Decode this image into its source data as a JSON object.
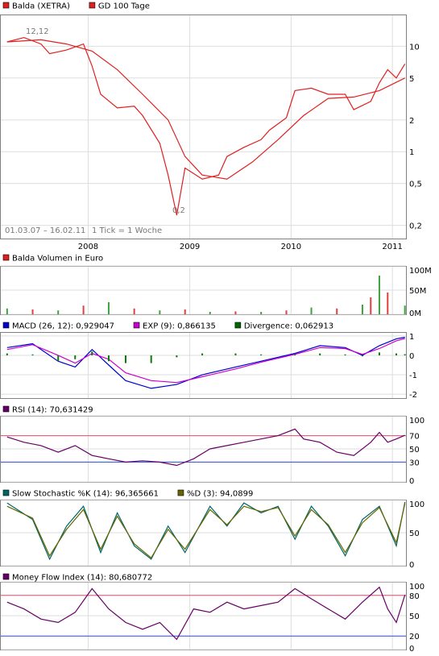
{
  "chart_data": [
    {
      "type": "line",
      "panel": "price",
      "legend": [
        {
          "label": "Balda (XETRA)",
          "color": "#e02020"
        },
        {
          "label": "GD 100 Tage",
          "color": "#e02020"
        }
      ],
      "y_scale": "log",
      "ylim": [
        0.15,
        20
      ],
      "y_ticks": [
        "10",
        "5",
        "2",
        "1",
        "0,5",
        "0,2"
      ],
      "y_tick_values": [
        10,
        5,
        2,
        1,
        0.5,
        0.2
      ],
      "x_ticks": [
        "2008",
        "2009",
        "2010",
        "2011"
      ],
      "x_range": [
        "2007-03-01",
        "2011-02-16"
      ],
      "annotations": [
        "12,12",
        "0,2"
      ],
      "date_range_label": "01.03.07 – 16.02.11",
      "tick_label": "1 Tick = 1 Woche",
      "series": [
        {
          "name": "Balda (XETRA)",
          "x": [
            "2007-03",
            "2007-05",
            "2007-07",
            "2007-08",
            "2007-10",
            "2007-12",
            "2008-01",
            "2008-02",
            "2008-04",
            "2008-06",
            "2008-07",
            "2008-09",
            "2008-10",
            "2008-11",
            "2008-12",
            "2009-02",
            "2009-04",
            "2009-05",
            "2009-07",
            "2009-09",
            "2009-10",
            "2009-12",
            "2010-01",
            "2010-03",
            "2010-05",
            "2010-07",
            "2010-08",
            "2010-10",
            "2010-11",
            "2010-12",
            "2011-01",
            "2011-02"
          ],
          "y": [
            11,
            12.1,
            10.5,
            8.5,
            9.2,
            10.5,
            6.5,
            3.5,
            2.6,
            2.7,
            2.2,
            1.2,
            0.6,
            0.25,
            0.7,
            0.55,
            0.6,
            0.9,
            1.1,
            1.3,
            1.6,
            2.1,
            3.8,
            4.0,
            3.5,
            3.5,
            2.5,
            3.0,
            4.5,
            6.0,
            5.0,
            6.8
          ]
        },
        {
          "name": "GD 100 Tage",
          "x": [
            "2007-03",
            "2007-07",
            "2007-10",
            "2008-01",
            "2008-04",
            "2008-07",
            "2008-10",
            "2008-12",
            "2009-02",
            "2009-05",
            "2009-08",
            "2009-11",
            "2010-02",
            "2010-05",
            "2010-08",
            "2010-11",
            "2011-02"
          ],
          "y": [
            11,
            11.5,
            10.5,
            9,
            6,
            3.5,
            2,
            0.9,
            0.6,
            0.55,
            0.8,
            1.3,
            2.2,
            3.2,
            3.3,
            3.8,
            5.0
          ]
        }
      ]
    },
    {
      "type": "bar",
      "panel": "volume",
      "legend": [
        {
          "label": "Balda Volumen in Euro",
          "color": "#e02020"
        }
      ],
      "y_ticks": [
        "100M",
        "50M",
        "0M"
      ],
      "y_tick_values": [
        100,
        50,
        0
      ],
      "ylim": [
        0,
        100
      ],
      "x": [
        "2007-03",
        "2007-06",
        "2007-09",
        "2007-12",
        "2008-03",
        "2008-06",
        "2008-09",
        "2008-12",
        "2009-03",
        "2009-06",
        "2009-09",
        "2009-12",
        "2010-03",
        "2010-06",
        "2010-09",
        "2010-10",
        "2010-11",
        "2010-12",
        "2011-02"
      ],
      "values": [
        12,
        10,
        8,
        18,
        25,
        12,
        8,
        10,
        5,
        6,
        5,
        8,
        14,
        12,
        20,
        35,
        80,
        45,
        18
      ]
    },
    {
      "type": "line",
      "panel": "macd",
      "legend": [
        {
          "label": "MACD (26, 12): 0,929047",
          "color": "#0000cc"
        },
        {
          "label": "EXP (9): 0,866135",
          "color": "#cc00cc"
        },
        {
          "label": "Divergence: 0,062913",
          "color": "#006600"
        }
      ],
      "y_ticks": [
        "1",
        "0",
        "-1",
        "-2"
      ],
      "y_tick_values": [
        1,
        0,
        -1,
        -2
      ],
      "ylim": [
        -2.2,
        1.2
      ],
      "series": [
        {
          "name": "MACD (26, 12)",
          "x": [
            "2007-03",
            "2007-06",
            "2007-09",
            "2007-11",
            "2008-01",
            "2008-03",
            "2008-05",
            "2008-08",
            "2008-11",
            "2009-02",
            "2009-06",
            "2009-09",
            "2010-01",
            "2010-04",
            "2010-07",
            "2010-09",
            "2010-11",
            "2011-01",
            "2011-02"
          ],
          "y": [
            0.4,
            0.6,
            -0.3,
            -0.6,
            0.3,
            -0.5,
            -1.3,
            -1.7,
            -1.5,
            -1.0,
            -0.6,
            -0.3,
            0.1,
            0.5,
            0.4,
            0.0,
            0.5,
            0.85,
            0.93
          ]
        },
        {
          "name": "EXP (9)",
          "x": [
            "2007-03",
            "2007-06",
            "2007-09",
            "2007-11",
            "2008-01",
            "2008-03",
            "2008-05",
            "2008-08",
            "2008-11",
            "2009-02",
            "2009-06",
            "2009-09",
            "2010-01",
            "2010-04",
            "2010-07",
            "2010-09",
            "2010-11",
            "2011-01",
            "2011-02"
          ],
          "y": [
            0.3,
            0.55,
            0.0,
            -0.4,
            0.1,
            -0.2,
            -0.9,
            -1.3,
            -1.4,
            -1.1,
            -0.7,
            -0.35,
            0.05,
            0.4,
            0.35,
            0.05,
            0.35,
            0.75,
            0.87
          ]
        },
        {
          "name": "Divergence",
          "x": [
            "2007-03",
            "2007-06",
            "2007-09",
            "2007-11",
            "2008-01",
            "2008-03",
            "2008-05",
            "2008-08",
            "2008-11",
            "2009-02",
            "2009-06",
            "2009-09",
            "2010-01",
            "2010-04",
            "2010-07",
            "2010-09",
            "2010-11",
            "2011-01",
            "2011-02"
          ],
          "y": [
            0.1,
            0.05,
            -0.3,
            -0.2,
            0.2,
            -0.3,
            -0.4,
            -0.4,
            -0.1,
            0.1,
            0.1,
            0.05,
            0.05,
            0.1,
            0.05,
            -0.05,
            0.15,
            0.1,
            0.06
          ]
        }
      ]
    },
    {
      "type": "line",
      "panel": "rsi",
      "legend": [
        {
          "label": "RSI (14): 70,631429",
          "color": "#660066"
        }
      ],
      "y_ticks": [
        "100",
        "70",
        "50",
        "30",
        "0"
      ],
      "y_tick_values": [
        100,
        70,
        50,
        30,
        0
      ],
      "ylim": [
        0,
        100
      ],
      "reference_lines": [
        70,
        30
      ],
      "series": [
        {
          "name": "RSI (14)",
          "x": [
            "2007-03",
            "2007-05",
            "2007-07",
            "2007-09",
            "2007-11",
            "2008-01",
            "2008-03",
            "2008-05",
            "2008-07",
            "2008-09",
            "2008-11",
            "2009-01",
            "2009-03",
            "2009-05",
            "2009-07",
            "2009-09",
            "2009-11",
            "2010-01",
            "2010-02",
            "2010-04",
            "2010-06",
            "2010-08",
            "2010-10",
            "2010-11",
            "2010-12",
            "2011-01",
            "2011-02"
          ],
          "y": [
            68,
            60,
            55,
            45,
            55,
            40,
            35,
            30,
            32,
            30,
            25,
            35,
            50,
            55,
            60,
            65,
            70,
            80,
            65,
            60,
            45,
            40,
            60,
            75,
            60,
            65,
            70.6
          ]
        }
      ]
    },
    {
      "type": "line",
      "panel": "stochastic",
      "legend": [
        {
          "label": "Slow Stochastic %K (14): 96,365661",
          "color": "#006666"
        },
        {
          "label": "%D (3): 94,0899",
          "color": "#666600"
        }
      ],
      "y_ticks": [
        "100",
        "50",
        "0"
      ],
      "y_tick_values": [
        100,
        50,
        0
      ],
      "ylim": [
        0,
        100
      ],
      "series": [
        {
          "name": "Slow Stochastic %K (14)",
          "x": [
            "2007-03",
            "2007-06",
            "2007-08",
            "2007-10",
            "2007-12",
            "2008-02",
            "2008-04",
            "2008-06",
            "2008-08",
            "2008-10",
            "2008-12",
            "2009-03",
            "2009-05",
            "2009-07",
            "2009-09",
            "2009-11",
            "2010-01",
            "2010-03",
            "2010-05",
            "2010-07",
            "2010-09",
            "2010-11",
            "2011-01",
            "2011-02"
          ],
          "y": [
            95,
            70,
            10,
            60,
            90,
            20,
            80,
            30,
            10,
            60,
            20,
            90,
            60,
            95,
            80,
            90,
            40,
            90,
            60,
            15,
            70,
            90,
            30,
            96.4
          ]
        },
        {
          "name": "%D (3)",
          "x": [
            "2007-03",
            "2007-06",
            "2007-08",
            "2007-10",
            "2007-12",
            "2008-02",
            "2008-04",
            "2008-06",
            "2008-08",
            "2008-10",
            "2008-12",
            "2009-03",
            "2009-05",
            "2009-07",
            "2009-09",
            "2009-11",
            "2010-01",
            "2010-03",
            "2010-05",
            "2010-07",
            "2010-09",
            "2010-11",
            "2011-01",
            "2011-02"
          ],
          "y": [
            90,
            72,
            15,
            55,
            85,
            25,
            75,
            33,
            12,
            55,
            25,
            85,
            62,
            90,
            82,
            88,
            45,
            85,
            62,
            20,
            65,
            88,
            35,
            94.1
          ]
        }
      ]
    },
    {
      "type": "line",
      "panel": "mfi",
      "legend": [
        {
          "label": "Money Flow Index (14): 80,680772",
          "color": "#660066"
        }
      ],
      "y_ticks": [
        "100",
        "80",
        "50",
        "20",
        "0"
      ],
      "y_tick_values": [
        100,
        80,
        50,
        20,
        0
      ],
      "ylim": [
        0,
        100
      ],
      "reference_lines": [
        80,
        20
      ],
      "series": [
        {
          "name": "Money Flow Index (14)",
          "x": [
            "2007-03",
            "2007-05",
            "2007-07",
            "2007-09",
            "2007-11",
            "2008-01",
            "2008-03",
            "2008-05",
            "2008-07",
            "2008-09",
            "2008-11",
            "2009-01",
            "2009-03",
            "2009-05",
            "2009-07",
            "2009-09",
            "2009-11",
            "2010-01",
            "2010-03",
            "2010-05",
            "2010-07",
            "2010-09",
            "2010-11",
            "2010-12",
            "2011-01",
            "2011-02"
          ],
          "y": [
            70,
            60,
            45,
            40,
            55,
            90,
            60,
            40,
            30,
            40,
            15,
            60,
            55,
            70,
            60,
            65,
            70,
            90,
            75,
            60,
            45,
            70,
            92,
            60,
            40,
            80.7
          ]
        }
      ]
    }
  ]
}
